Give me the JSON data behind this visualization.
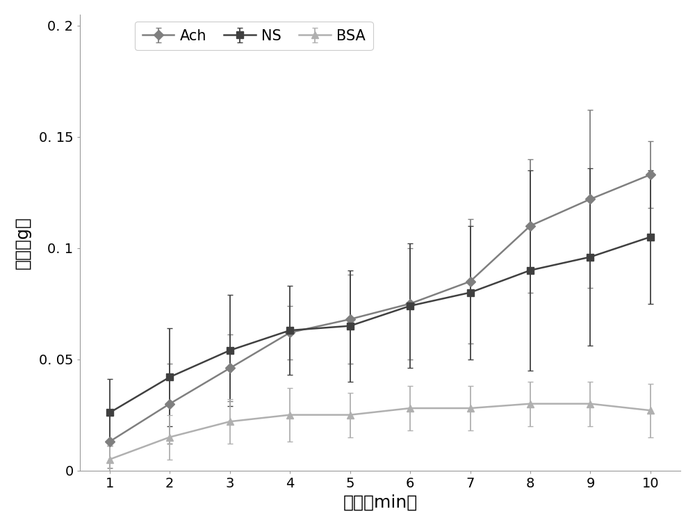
{
  "x": [
    1,
    2,
    3,
    4,
    5,
    6,
    7,
    8,
    9,
    10
  ],
  "ach_y": [
    0.013,
    0.03,
    0.046,
    0.062,
    0.068,
    0.075,
    0.085,
    0.11,
    0.122,
    0.133
  ],
  "ach_err": [
    0.012,
    0.018,
    0.015,
    0.012,
    0.02,
    0.025,
    0.028,
    0.03,
    0.04,
    0.015
  ],
  "ns_y": [
    0.026,
    0.042,
    0.054,
    0.063,
    0.065,
    0.074,
    0.08,
    0.09,
    0.096,
    0.105
  ],
  "ns_err": [
    0.015,
    0.022,
    0.025,
    0.02,
    0.025,
    0.028,
    0.03,
    0.045,
    0.04,
    0.03
  ],
  "bsa_y": [
    0.005,
    0.015,
    0.022,
    0.025,
    0.025,
    0.028,
    0.028,
    0.03,
    0.03,
    0.027
  ],
  "bsa_err": [
    0.006,
    0.01,
    0.01,
    0.012,
    0.01,
    0.01,
    0.01,
    0.01,
    0.01,
    0.012
  ],
  "ach_color": "#7f7f7f",
  "ns_color": "#404040",
  "bsa_color": "#b0b0b0",
  "ach_marker": "D",
  "ns_marker": "s",
  "bsa_marker": "^",
  "xlabel": "时间（min）",
  "ylabel": "张力（g）",
  "ylim": [
    0,
    0.205
  ],
  "ytick_vals": [
    0,
    0.05,
    0.1,
    0.15,
    0.2
  ],
  "ytick_labels": [
    "0",
    "0. 05",
    "0. 1",
    "0. 15",
    "0. 2"
  ],
  "xlim": [
    0.5,
    10.5
  ],
  "xticks": [
    1,
    2,
    3,
    4,
    5,
    6,
    7,
    8,
    9,
    10
  ],
  "legend_labels": [
    "Ach",
    "NS",
    "BSA"
  ],
  "plot_bg": "#ffffff",
  "figure_bg": "#ffffff",
  "linewidth": 1.8,
  "markersize": 7,
  "capsize": 3,
  "label_fontsize": 18,
  "tick_fontsize": 14,
  "legend_fontsize": 15
}
